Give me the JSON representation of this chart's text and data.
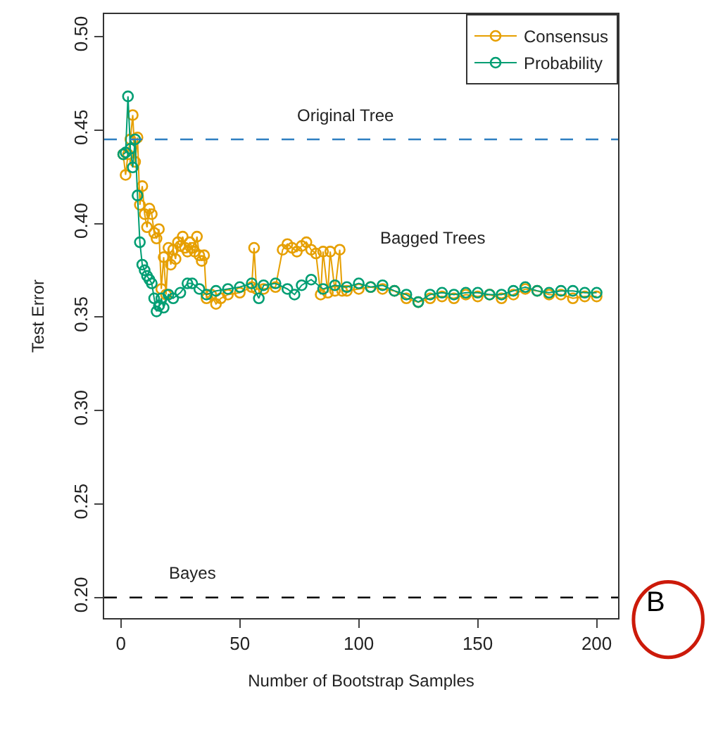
{
  "chart_data": {
    "type": "line",
    "xlabel": "Number of Bootstrap Samples",
    "ylabel": "Test Error",
    "xlim": [
      -7,
      209
    ],
    "xticks": [
      0,
      50,
      100,
      150,
      200
    ],
    "ylim": [
      0.189,
      0.512
    ],
    "yticks": [
      {
        "value": 0.2,
        "label": "0.20"
      },
      {
        "value": 0.25,
        "label": "0.25"
      },
      {
        "value": 0.3,
        "label": "0.30"
      },
      {
        "value": 0.35,
        "label": "0.35"
      },
      {
        "value": 0.4,
        "label": "0.40"
      },
      {
        "value": 0.45,
        "label": "0.45"
      },
      {
        "value": 0.5,
        "label": "0.50"
      }
    ],
    "legend": "top right",
    "marker": "circle",
    "line_style": "solid",
    "series": [
      {
        "name": "Consensus",
        "color": "#e69f00",
        "x": [
          1,
          2,
          3,
          4,
          5,
          6,
          7,
          8,
          9,
          10,
          11,
          12,
          13,
          14,
          15,
          16,
          17,
          18,
          19,
          20,
          21,
          22,
          23,
          24,
          25,
          26,
          27,
          28,
          29,
          30,
          31,
          32,
          33,
          34,
          35,
          36,
          38,
          40,
          42,
          45,
          50,
          55,
          56,
          57,
          60,
          65,
          68,
          70,
          72,
          74,
          76,
          78,
          80,
          82,
          84,
          85,
          87,
          88,
          90,
          92,
          93,
          95,
          100,
          105,
          110,
          115,
          120,
          125,
          130,
          135,
          140,
          145,
          150,
          155,
          160,
          165,
          170,
          175,
          180,
          185,
          190,
          195,
          200
        ],
        "values": [
          0.437,
          0.426,
          0.437,
          0.445,
          0.458,
          0.433,
          0.446,
          0.41,
          0.42,
          0.405,
          0.398,
          0.408,
          0.405,
          0.395,
          0.392,
          0.397,
          0.365,
          0.382,
          0.362,
          0.387,
          0.378,
          0.386,
          0.381,
          0.39,
          0.388,
          0.393,
          0.387,
          0.385,
          0.39,
          0.387,
          0.385,
          0.393,
          0.383,
          0.38,
          0.383,
          0.36,
          0.362,
          0.357,
          0.36,
          0.362,
          0.363,
          0.366,
          0.387,
          0.365,
          0.365,
          0.366,
          0.386,
          0.389,
          0.387,
          0.385,
          0.388,
          0.39,
          0.386,
          0.384,
          0.362,
          0.385,
          0.363,
          0.385,
          0.364,
          0.386,
          0.364,
          0.364,
          0.365,
          0.366,
          0.365,
          0.364,
          0.36,
          0.358,
          0.36,
          0.361,
          0.36,
          0.362,
          0.361,
          0.362,
          0.36,
          0.362,
          0.365,
          0.364,
          0.362,
          0.362,
          0.36,
          0.361,
          0.361
        ]
      },
      {
        "name": "Probability",
        "color": "#009e73",
        "x": [
          1,
          2,
          3,
          4,
          5,
          6,
          7,
          8,
          9,
          10,
          11,
          12,
          13,
          14,
          15,
          16,
          17,
          18,
          20,
          22,
          25,
          28,
          30,
          33,
          36,
          40,
          45,
          50,
          55,
          58,
          60,
          65,
          70,
          73,
          76,
          80,
          85,
          90,
          95,
          100,
          105,
          110,
          115,
          120,
          125,
          130,
          135,
          140,
          145,
          150,
          155,
          160,
          165,
          170,
          175,
          180,
          185,
          190,
          195,
          200
        ],
        "values": [
          0.437,
          0.438,
          0.468,
          0.44,
          0.43,
          0.445,
          0.415,
          0.39,
          0.378,
          0.375,
          0.372,
          0.37,
          0.368,
          0.36,
          0.353,
          0.356,
          0.36,
          0.355,
          0.362,
          0.36,
          0.363,
          0.368,
          0.368,
          0.365,
          0.362,
          0.364,
          0.365,
          0.366,
          0.368,
          0.36,
          0.367,
          0.368,
          0.365,
          0.362,
          0.367,
          0.37,
          0.365,
          0.367,
          0.366,
          0.368,
          0.366,
          0.367,
          0.364,
          0.362,
          0.358,
          0.362,
          0.363,
          0.362,
          0.363,
          0.363,
          0.362,
          0.362,
          0.364,
          0.366,
          0.364,
          0.363,
          0.364,
          0.364,
          0.363,
          0.363
        ]
      }
    ],
    "ref_lines": [
      {
        "axis": "y",
        "value": 0.445,
        "label": "Original Tree",
        "color": "#2f7fc1",
        "line_style": "dashed"
      },
      {
        "axis": "y",
        "value": 0.2,
        "label": "Bayes",
        "color": "#000000",
        "line_style": "dashed"
      }
    ],
    "annotations": [
      "Bagged Trees",
      "B"
    ]
  }
}
